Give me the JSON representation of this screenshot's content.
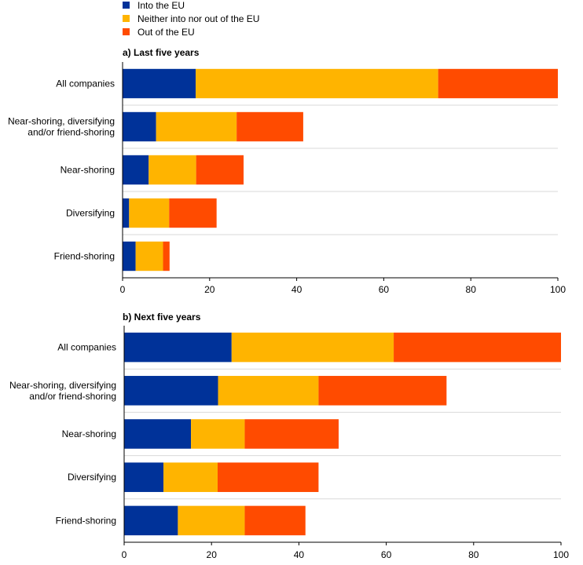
{
  "colors": {
    "into_eu": "#003299",
    "neither": "#FFB400",
    "out_of_eu": "#FF4B00",
    "grid": "#D9D9D9",
    "axis": "#000000"
  },
  "chart_data": {
    "type": "bar",
    "orientation": "horizontal",
    "stacked": true,
    "legend": {
      "placement": "top-left",
      "entries": [
        "Into the EU",
        "Neither into nor out of the EU",
        "Out of the EU"
      ]
    },
    "xlim": [
      0,
      100
    ],
    "xticks": [
      "0",
      "20",
      "40",
      "60",
      "80",
      "100"
    ],
    "panels": [
      {
        "title": "a) Last five years",
        "categories": [
          [
            "All companies"
          ],
          [
            "Near-shoring, diversifying",
            "and/or friend-shoring"
          ],
          [
            "Near-shoring"
          ],
          [
            "Diversifying"
          ],
          [
            "Friend-shoring"
          ]
        ],
        "series": [
          {
            "name": "Into the EU",
            "values": [
              16.8,
              7.7,
              6.0,
              1.5,
              3.0
            ]
          },
          {
            "name": "Neither into nor out of the EU",
            "values": [
              55.7,
              18.5,
              10.9,
              9.2,
              6.3
            ]
          },
          {
            "name": "Out of the EU",
            "values": [
              27.5,
              15.3,
              10.9,
              10.9,
              1.5
            ]
          }
        ]
      },
      {
        "title": "b) Next five years",
        "categories": [
          [
            "All companies"
          ],
          [
            "Near-shoring, diversifying",
            "and/or friend-shoring"
          ],
          [
            "Near-shoring"
          ],
          [
            "Diversifying"
          ],
          [
            "Friend-shoring"
          ]
        ],
        "series": [
          {
            "name": "Into the EU",
            "values": [
              24.6,
              21.5,
              15.3,
              9.0,
              12.3
            ]
          },
          {
            "name": "Neither into nor out of the EU",
            "values": [
              37.1,
              23.0,
              12.3,
              12.4,
              15.3
            ]
          },
          {
            "name": "Out of the EU",
            "values": [
              38.3,
              29.3,
              21.5,
              23.1,
              13.9
            ]
          }
        ]
      }
    ]
  }
}
